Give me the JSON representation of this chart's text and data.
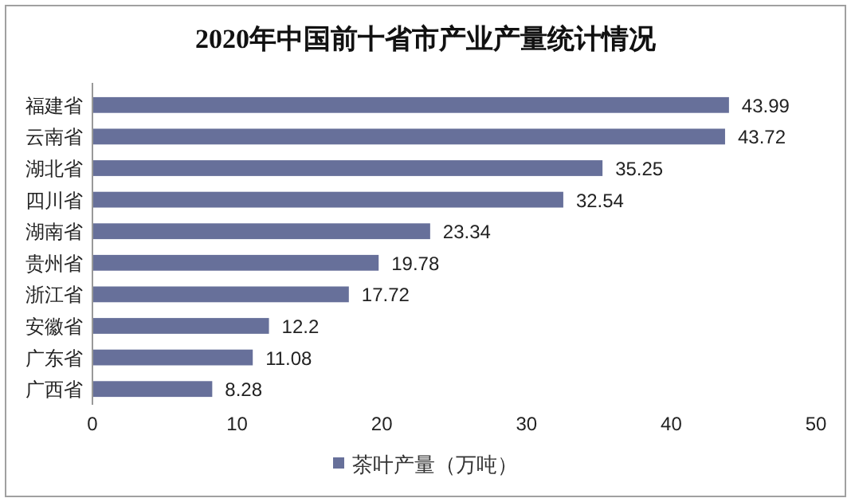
{
  "chart_data": {
    "type": "bar",
    "orientation": "horizontal",
    "title": "2020年中国前十省市产业产量统计情况",
    "categories": [
      "福建省",
      "云南省",
      "湖北省",
      "四川省",
      "湖南省",
      "贵州省",
      "浙江省",
      "安徽省",
      "广东省",
      "广西省"
    ],
    "series": [
      {
        "name": "茶叶产量（万吨）",
        "color": "#67709a",
        "values": [
          43.99,
          43.72,
          35.25,
          32.54,
          23.34,
          19.78,
          17.72,
          12.2,
          11.08,
          8.28
        ]
      }
    ],
    "xlim": [
      0,
      50
    ],
    "xticks": [
      0,
      10,
      20,
      30,
      40,
      50
    ],
    "data_labels": true,
    "legend": "bottom"
  }
}
